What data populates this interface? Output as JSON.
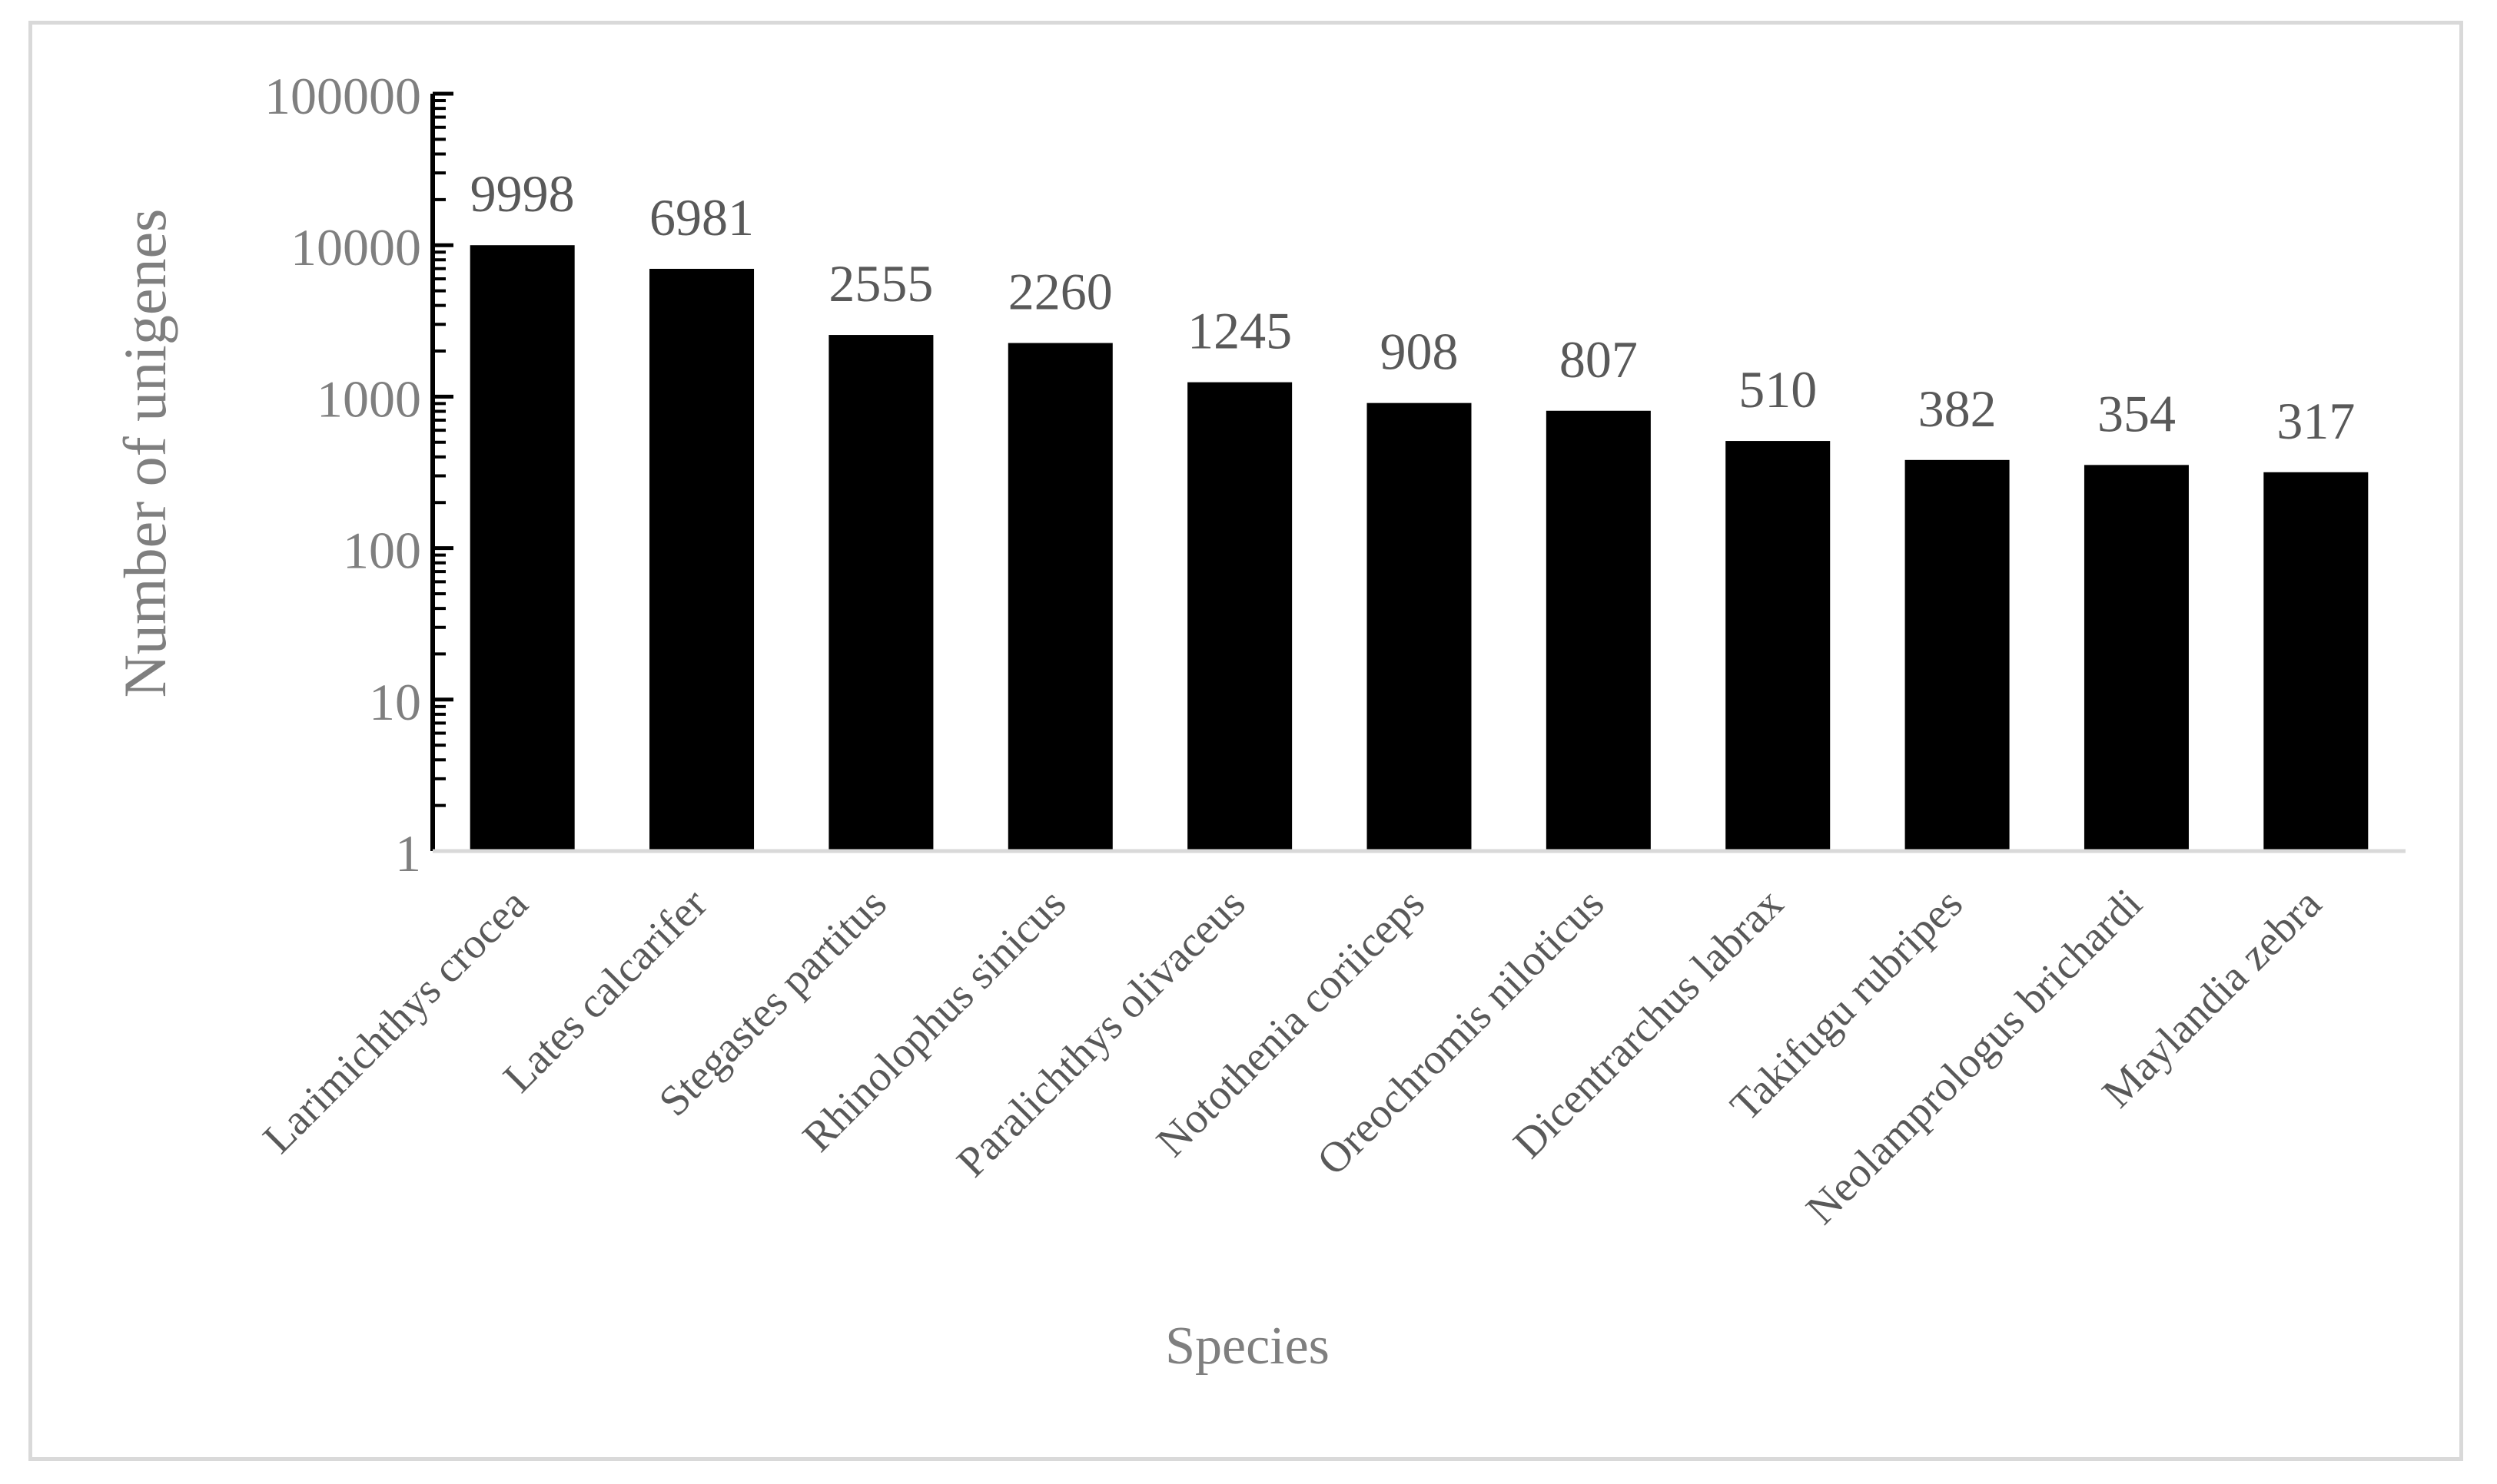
{
  "chart_data": {
    "type": "bar",
    "title": "",
    "xlabel": "Species",
    "ylabel": "Number of unigenes",
    "y_scale": "log10",
    "ylim": [
      1,
      100000
    ],
    "yticks": [
      "1",
      "10",
      "100",
      "1000",
      "10000",
      "100000"
    ],
    "categories": [
      "Larimichthys crocea",
      "Lates calcarifer",
      "Stegastes partitus",
      "Rhinolophus sinicus",
      "Paralichthys olivaceus",
      "Notothenia coriiceps",
      "Oreochromis niloticus",
      "Dicentrarchus labrax",
      "Takifugu rubripes",
      "Neolamprologus brichardi",
      "Maylandia zebra"
    ],
    "values": [
      9998,
      6981,
      2555,
      2260,
      1245,
      908,
      807,
      510,
      382,
      354,
      317
    ],
    "data_labels": [
      "9998",
      "6981",
      "2555",
      "2260",
      "1245",
      "908",
      "807",
      "510",
      "382",
      "354",
      "317"
    ],
    "grid": false,
    "legend": "none"
  },
  "colors": {
    "bar": "#000000",
    "axis_text": "#7f7f7f",
    "data_label": "#595959",
    "frame": "#d9d9d9",
    "x_axis_line": "#d9d9d9",
    "y_axis_line": "#000000"
  }
}
